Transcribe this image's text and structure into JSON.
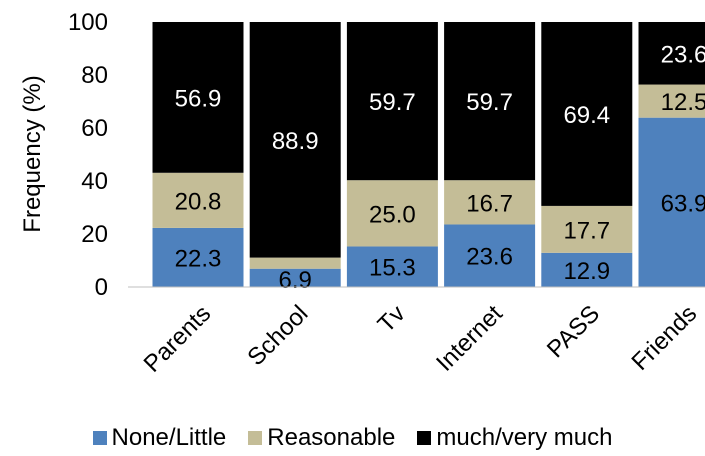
{
  "chart_data": {
    "type": "bar",
    "stacked": true,
    "categories": [
      "Parents",
      "School",
      "Tv",
      "Internet",
      "PASS",
      "Friends"
    ],
    "series": [
      {
        "name": "None/Little",
        "color": "#4e81bd",
        "values": [
          22.3,
          6.9,
          15.3,
          23.6,
          12.9,
          63.9
        ]
      },
      {
        "name": "Reasonable",
        "color": "#c4bd97",
        "values": [
          20.8,
          4.2,
          25.0,
          16.7,
          17.7,
          12.5
        ]
      },
      {
        "name": "much/very much",
        "color": "#000000",
        "values": [
          56.9,
          88.9,
          59.7,
          59.7,
          69.4,
          23.6
        ]
      }
    ],
    "data_labels": [
      [
        "22.3",
        "6.9",
        "15.3",
        "23.6",
        "12.9",
        "63.9"
      ],
      [
        "20.8",
        "",
        "25.0",
        "16.7",
        "17.7",
        "12.5"
      ],
      [
        "56.9",
        "88.9",
        "59.7",
        "59.7",
        "69.4",
        "23.6"
      ]
    ],
    "title": "",
    "xlabel": "",
    "ylabel": "Frequency (%)",
    "ylim": [
      0,
      100
    ],
    "yticks": [
      "0",
      "20",
      "40",
      "60",
      "80",
      "100"
    ],
    "grid": false,
    "legend_position": "bottom"
  }
}
